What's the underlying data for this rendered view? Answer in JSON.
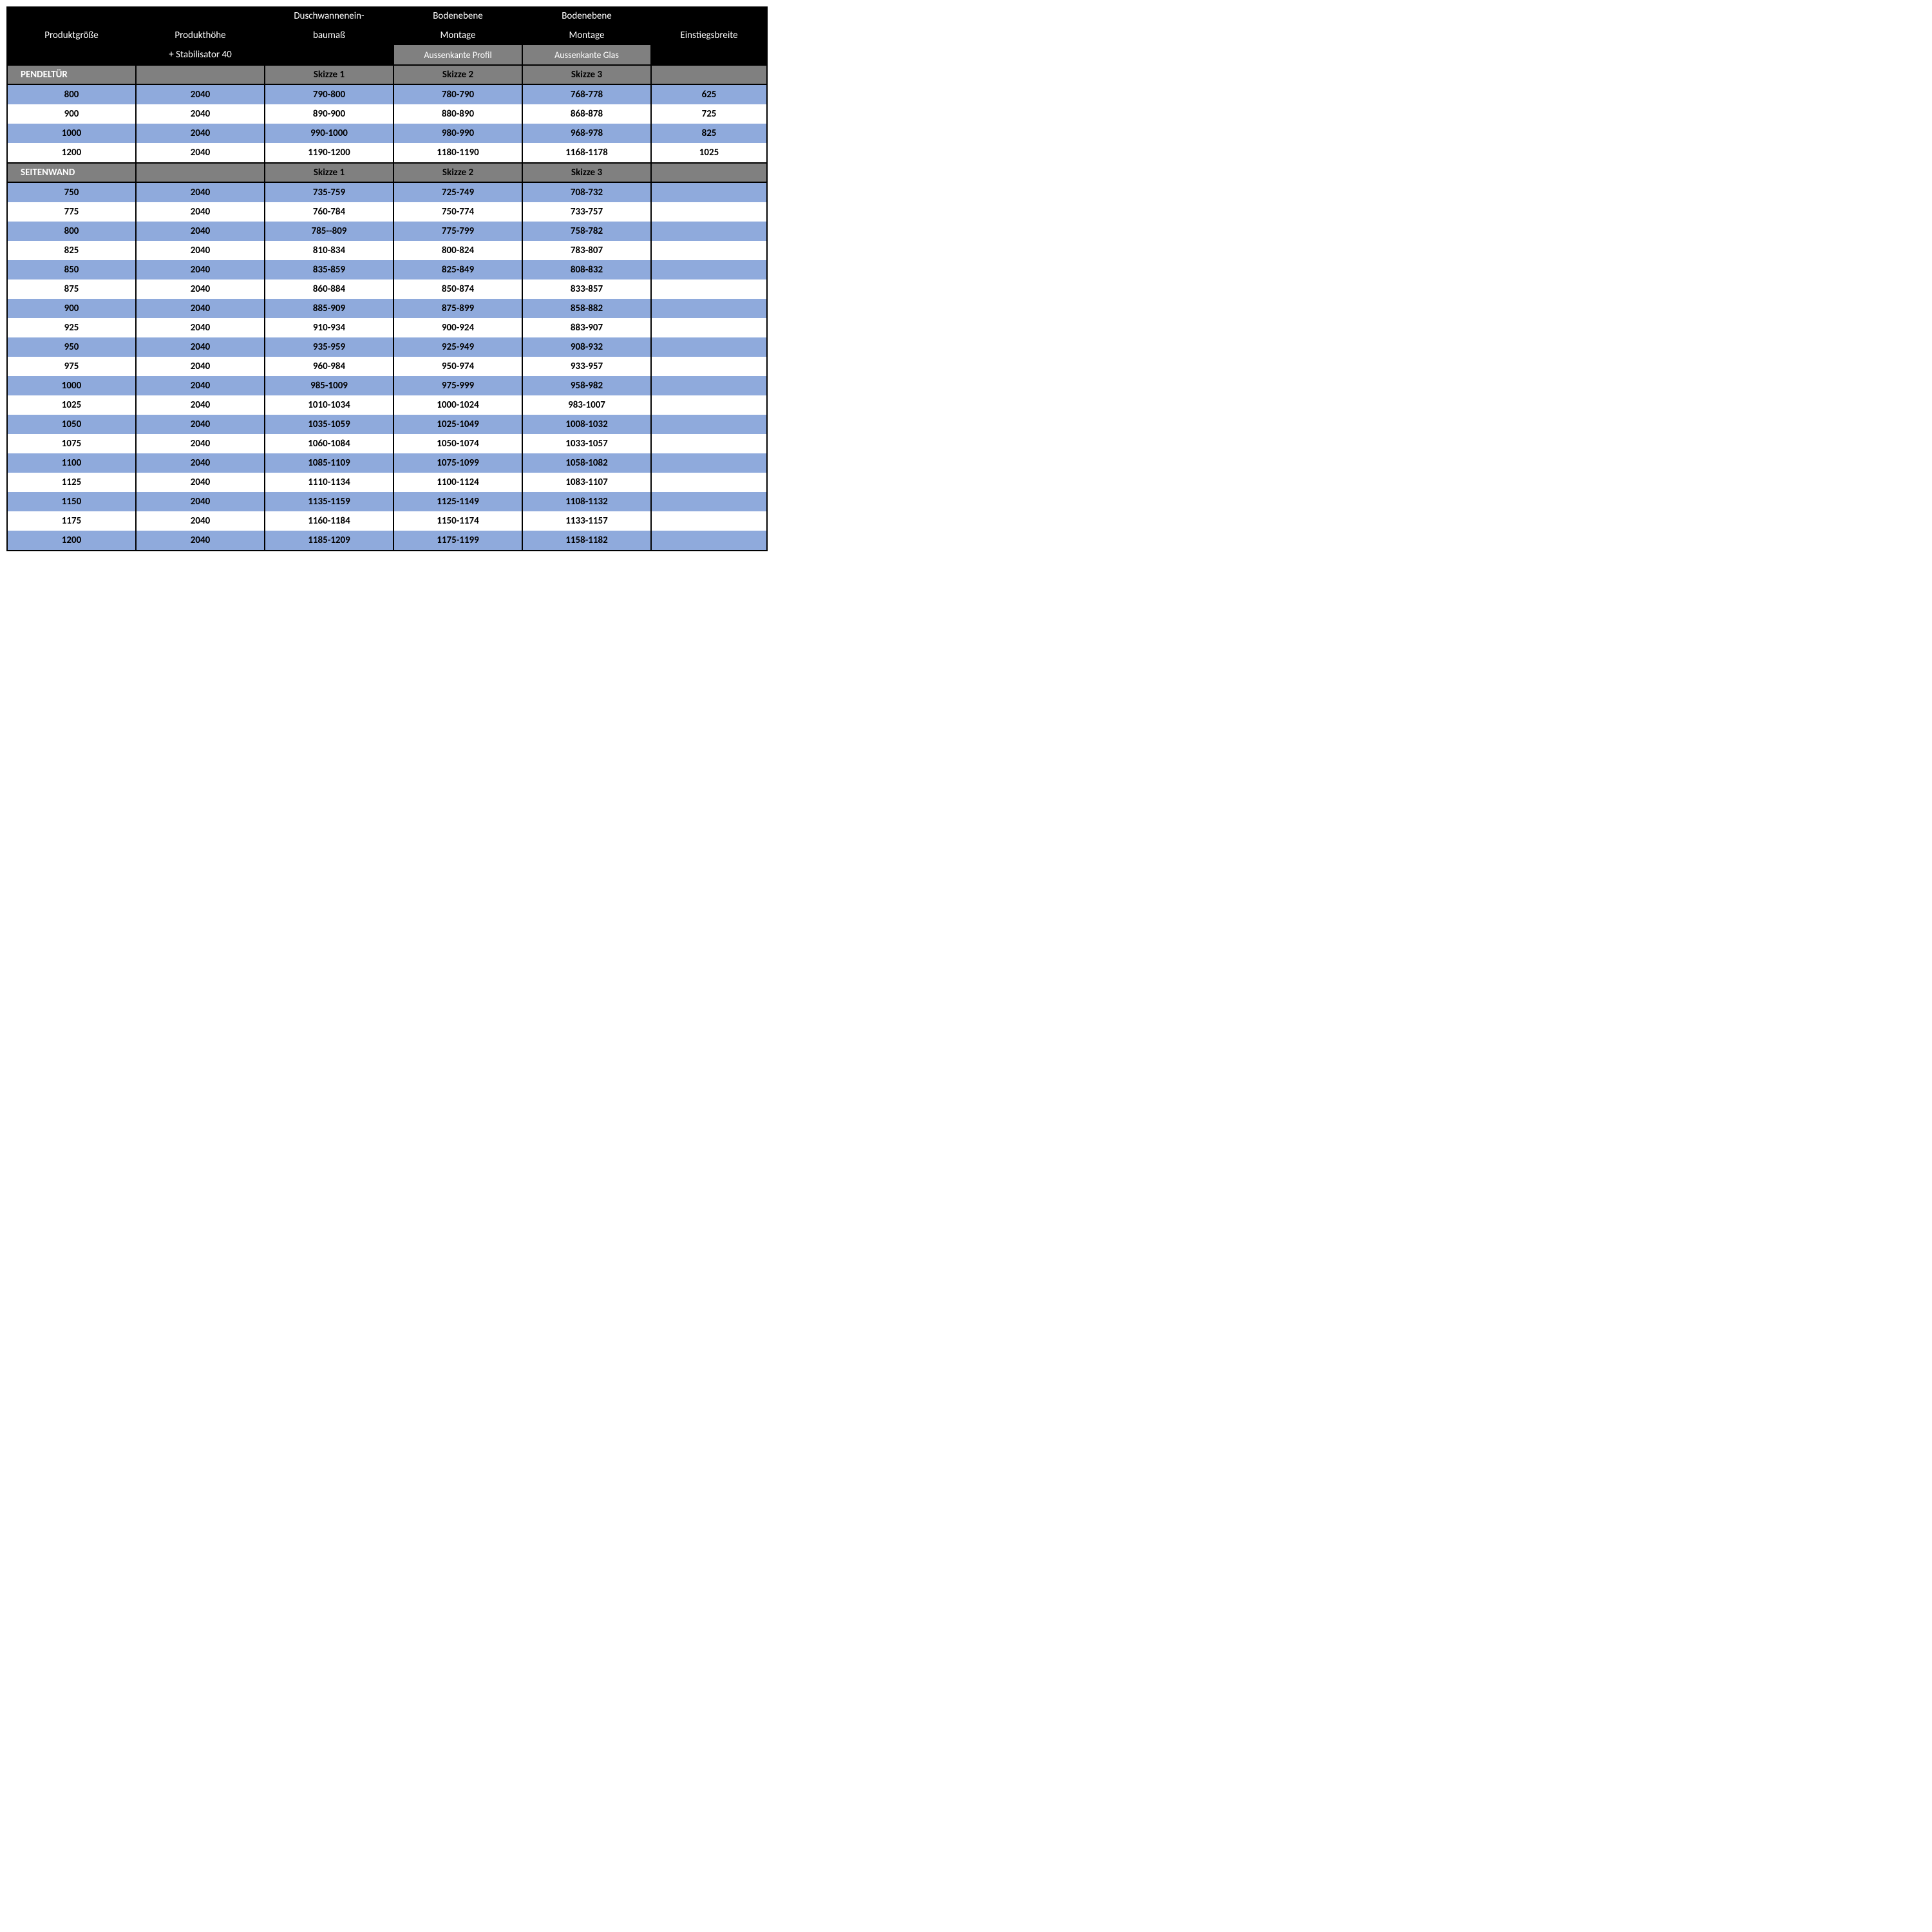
{
  "colors": {
    "header_bg": "#000000",
    "header_text": "#ffffff",
    "subheader_bg": "#808080",
    "subheader_text": "#ffffff",
    "section_bg": "#808080",
    "row_alt_bg": "#8faadc",
    "row_bg": "#ffffff",
    "border": "#000000"
  },
  "header": {
    "col1": "Produktgröße",
    "col2_line1": "Produkthöhe",
    "col2_line2": "+  Stabilisator 40",
    "col3_line1": "Duschwannenein-",
    "col3_line2": "baumaß",
    "col4_line1": "Bodenebene",
    "col4_line2": "Montage",
    "col4_sub": "Aussenkante Profil",
    "col5_line1": "Bodenebene",
    "col5_line2": "Montage",
    "col5_sub": "Aussenkante Glas",
    "col6": "Einstiegsbreite"
  },
  "sections": [
    {
      "title": "PENDELTÜR",
      "skizze": [
        "",
        "",
        "Skizze 1",
        "Skizze 2",
        "Skizze 3",
        ""
      ],
      "rows": [
        [
          "800",
          "2040",
          "790-800",
          "780-790",
          "768-778",
          "625"
        ],
        [
          "900",
          "2040",
          "890-900",
          "880-890",
          "868-878",
          "725"
        ],
        [
          "1000",
          "2040",
          "990-1000",
          "980-990",
          "968-978",
          "825"
        ],
        [
          "1200",
          "2040",
          "1190-1200",
          "1180-1190",
          "1168-1178",
          "1025"
        ]
      ]
    },
    {
      "title": "SEITENWAND",
      "skizze": [
        "",
        "",
        "Skizze 1",
        "Skizze 2",
        "Skizze 3",
        ""
      ],
      "rows": [
        [
          "750",
          "2040",
          "735-759",
          "725-749",
          "708-732",
          ""
        ],
        [
          "775",
          "2040",
          "760-784",
          "750-774",
          "733-757",
          ""
        ],
        [
          "800",
          "2040",
          "785--809",
          "775-799",
          "758-782",
          ""
        ],
        [
          "825",
          "2040",
          "810-834",
          "800-824",
          "783-807",
          ""
        ],
        [
          "850",
          "2040",
          "835-859",
          "825-849",
          "808-832",
          ""
        ],
        [
          "875",
          "2040",
          "860-884",
          "850-874",
          "833-857",
          ""
        ],
        [
          "900",
          "2040",
          "885-909",
          "875-899",
          "858-882",
          ""
        ],
        [
          "925",
          "2040",
          "910-934",
          "900-924",
          "883-907",
          ""
        ],
        [
          "950",
          "2040",
          "935-959",
          "925-949",
          "908-932",
          ""
        ],
        [
          "975",
          "2040",
          "960-984",
          "950-974",
          "933-957",
          ""
        ],
        [
          "1000",
          "2040",
          "985-1009",
          "975-999",
          "958-982",
          ""
        ],
        [
          "1025",
          "2040",
          "1010-1034",
          "1000-1024",
          "983-1007",
          ""
        ],
        [
          "1050",
          "2040",
          "1035-1059",
          "1025-1049",
          "1008-1032",
          ""
        ],
        [
          "1075",
          "2040",
          "1060-1084",
          "1050-1074",
          "1033-1057",
          ""
        ],
        [
          "1100",
          "2040",
          "1085-1109",
          "1075-1099",
          "1058-1082",
          ""
        ],
        [
          "1125",
          "2040",
          "1110-1134",
          "1100-1124",
          "1083-1107",
          ""
        ],
        [
          "1150",
          "2040",
          "1135-1159",
          "1125-1149",
          "1108-1132",
          ""
        ],
        [
          "1175",
          "2040",
          "1160-1184",
          "1150-1174",
          "1133-1157",
          ""
        ],
        [
          "1200",
          "2040",
          "1185-1209",
          "1175-1199",
          "1158-1182",
          ""
        ]
      ]
    }
  ]
}
